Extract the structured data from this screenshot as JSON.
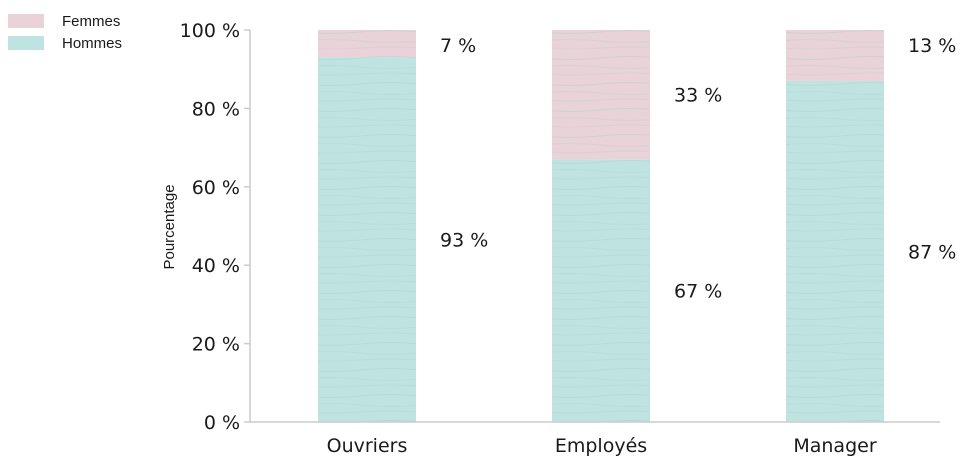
{
  "chart_data": {
    "type": "bar",
    "stacked": true,
    "categories": [
      "Ouvriers",
      "Employés",
      "Manager"
    ],
    "series": [
      {
        "name": "Hommes",
        "values": [
          93,
          67,
          87
        ],
        "labels": [
          "93 %",
          "67 %",
          "87 %"
        ],
        "color": "#bfe3e1"
      },
      {
        "name": "Femmes",
        "values": [
          7,
          33,
          13
        ],
        "labels": [
          "7 %",
          "33 %",
          "13 %"
        ],
        "color": "#e9d2d8"
      }
    ],
    "ylabel": "Pourcentage",
    "ylim": [
      0,
      100
    ],
    "yticks": [
      0,
      20,
      40,
      60,
      80,
      100
    ],
    "ytick_labels": [
      "0 %",
      "20 %",
      "40 %",
      "60 %",
      "80 %",
      "100 %"
    ],
    "grid": false,
    "legend": {
      "position": "top-left",
      "entries": [
        "Femmes",
        "Hommes"
      ]
    },
    "colors": {
      "axis": "#cccccc",
      "texture": "#a9d0cd"
    }
  }
}
